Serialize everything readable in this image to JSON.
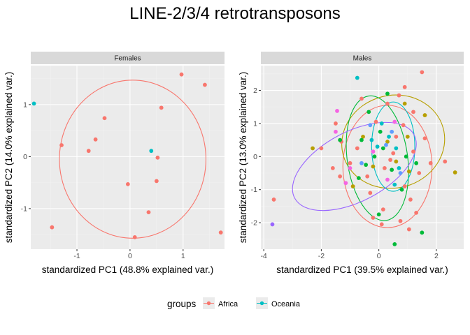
{
  "title": "LINE-2/3/4 retrotransposons",
  "legend": {
    "title": "groups",
    "entries": [
      {
        "label": "Africa",
        "color": "#F8766D"
      },
      {
        "label": "Oceania",
        "color": "#00BFC4"
      }
    ]
  },
  "chart_data": [
    {
      "type": "scatter",
      "panel": "Females",
      "xlabel": "standardized PC1 (48.8% explained var.)",
      "ylabel": "standardized PC2 (14.0% explained var.)",
      "xlim": [
        -1.87,
        1.78
      ],
      "ylim": [
        -1.78,
        1.75
      ],
      "xticks": [
        -1,
        0,
        1
      ],
      "yticks": [
        -1,
        0,
        1
      ],
      "grid": true,
      "series": [
        {
          "name": "Africa",
          "color": "#F8766D",
          "points": [
            [
              0.97,
              1.58
            ],
            [
              1.41,
              1.38
            ],
            [
              0.59,
              0.94
            ],
            [
              -0.48,
              0.74
            ],
            [
              -0.65,
              0.33
            ],
            [
              -1.29,
              0.22
            ],
            [
              -0.78,
              0.11
            ],
            [
              0.52,
              -0.02
            ],
            [
              -0.04,
              -0.53
            ],
            [
              0.5,
              -0.47
            ],
            [
              0.35,
              -1.07
            ],
            [
              0.09,
              -1.55
            ],
            [
              -1.47,
              -1.36
            ],
            [
              1.71,
              -1.46
            ]
          ]
        },
        {
          "name": "Oceania",
          "color": "#00BFC4",
          "points": [
            [
              -1.81,
              1.02
            ],
            [
              0.4,
              0.11
            ]
          ]
        }
      ],
      "ellipses": [
        {
          "group": "Africa",
          "color": "#F8766D",
          "center": [
            0.05,
            -0.05
          ],
          "rx": 1.38,
          "ry": 1.52,
          "angle": 0
        }
      ]
    },
    {
      "type": "scatter",
      "panel": "Males",
      "xlabel": "standardized PC1 (39.5% explained var.)",
      "ylabel": "standardized PC2 (13.0% explained var.)",
      "xlim": [
        -4.1,
        2.95
      ],
      "ylim": [
        -2.8,
        2.75
      ],
      "xticks": [
        -4,
        -2,
        0,
        2
      ],
      "yticks": [
        -2,
        -1,
        0,
        1,
        2
      ],
      "grid": true,
      "series": [
        {
          "name": "",
          "color": "#F8766D",
          "points": [
            [
              1.5,
              2.55
            ],
            [
              0.9,
              2.1
            ],
            [
              0.7,
              1.85
            ],
            [
              -0.6,
              1.75
            ],
            [
              0.3,
              1.6
            ],
            [
              1.2,
              1.35
            ],
            [
              -1.5,
              1.0
            ],
            [
              0.85,
              0.95
            ],
            [
              1.6,
              0.55
            ],
            [
              -1.3,
              0.45
            ],
            [
              -2.0,
              0.25
            ],
            [
              -0.75,
              0.25
            ],
            [
              0.5,
              0.1
            ],
            [
              1.2,
              0.15
            ],
            [
              0.4,
              -0.1
            ],
            [
              -1.0,
              -0.2
            ],
            [
              1.8,
              -0.2
            ],
            [
              0.2,
              -0.35
            ],
            [
              -0.4,
              -0.6
            ],
            [
              1.4,
              -0.5
            ],
            [
              -1.6,
              -0.35
            ],
            [
              0.9,
              -0.9
            ],
            [
              -0.3,
              -1.1
            ],
            [
              1.1,
              -1.3
            ],
            [
              -3.65,
              -1.3
            ],
            [
              0.15,
              -1.6
            ],
            [
              1.3,
              -1.7
            ],
            [
              0.75,
              -1.95
            ],
            [
              -0.2,
              -1.85
            ],
            [
              1.05,
              -2.2
            ],
            [
              0.1,
              -2.05
            ],
            [
              2.3,
              -0.15
            ],
            [
              -1.35,
              -0.6
            ],
            [
              0.6,
              0.6
            ],
            [
              -0.1,
              1.05
            ]
          ]
        },
        {
          "name": "",
          "color": "#B79F00",
          "points": [
            [
              1.6,
              1.25
            ],
            [
              0.9,
              1.6
            ],
            [
              -2.3,
              0.25
            ],
            [
              -0.55,
              0.6
            ],
            [
              0.3,
              0.45
            ],
            [
              -0.2,
              -0.3
            ],
            [
              1.05,
              -0.45
            ],
            [
              2.65,
              -0.48
            ],
            [
              -0.9,
              -0.9
            ],
            [
              0.6,
              -0.15
            ],
            [
              1.0,
              0.6
            ]
          ]
        },
        {
          "name": "",
          "color": "#00BA38",
          "points": [
            [
              0.3,
              1.9
            ],
            [
              -0.35,
              1.35
            ],
            [
              0.05,
              0.75
            ],
            [
              -0.6,
              0.5
            ],
            [
              0.15,
              0.25
            ],
            [
              -0.15,
              0.0
            ],
            [
              0.95,
              0.0
            ],
            [
              -0.45,
              -0.25
            ],
            [
              0.45,
              -0.4
            ],
            [
              -0.7,
              -0.65
            ],
            [
              0.8,
              -1.0
            ],
            [
              0.0,
              -1.75
            ],
            [
              0.55,
              -2.65
            ],
            [
              1.5,
              -2.3
            ],
            [
              -1.35,
              0.5
            ],
            [
              1.3,
              -0.2
            ]
          ]
        },
        {
          "name": "",
          "color": "#00BFC4",
          "points": [
            [
              -0.75,
              2.38
            ],
            [
              0.1,
              1.0
            ],
            [
              0.35,
              0.6
            ],
            [
              0.6,
              0.25
            ],
            [
              -0.25,
              0.5
            ],
            [
              0.7,
              -0.35
            ],
            [
              0.55,
              -0.85
            ],
            [
              -0.05,
              0.3
            ]
          ]
        },
        {
          "name": "",
          "color": "#619CFF",
          "points": [
            [
              -0.3,
              0.95
            ],
            [
              0.25,
              0.35
            ],
            [
              0.75,
              -0.5
            ],
            [
              -0.6,
              -0.2
            ],
            [
              0.45,
              0.75
            ]
          ]
        },
        {
          "name": "",
          "color": "#F564E3",
          "points": [
            [
              -1.45,
              1.38
            ],
            [
              -1.5,
              0.75
            ],
            [
              0.55,
              1.05
            ],
            [
              -1.0,
              -0.35
            ],
            [
              -1.15,
              -0.8
            ],
            [
              0.3,
              -0.7
            ],
            [
              -0.2,
              0.15
            ]
          ]
        },
        {
          "name": "",
          "color": "#9966FF",
          "points": [
            [
              -3.7,
              -2.05
            ]
          ]
        }
      ],
      "ellipses": [
        {
          "color": "#F8766D",
          "center": [
            0.3,
            -0.3
          ],
          "rx": 1.55,
          "ry": 1.85,
          "angle": 0
        },
        {
          "color": "#B79F00",
          "center": [
            0.5,
            0.45
          ],
          "rx": 1.8,
          "ry": 1.4,
          "angle": 15
        },
        {
          "color": "#00BA38",
          "center": [
            -0.05,
            -0.05
          ],
          "rx": 1.05,
          "ry": 1.9,
          "angle": 8
        },
        {
          "color": "#00BFC4",
          "center": [
            0.5,
            0.3
          ],
          "rx": 0.75,
          "ry": 1.35,
          "angle": 0
        },
        {
          "color": "#9966FF",
          "center": [
            -0.85,
            -0.3
          ],
          "rx": 2.35,
          "ry": 1.05,
          "angle": 28
        }
      ]
    }
  ]
}
